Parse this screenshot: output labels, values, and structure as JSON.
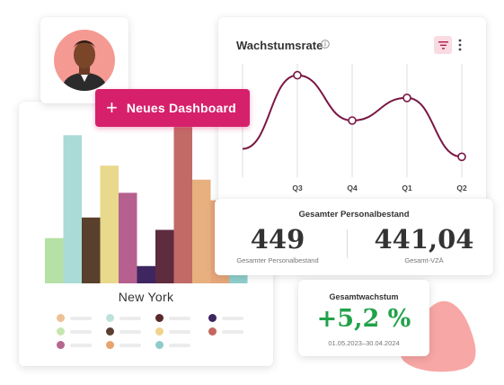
{
  "avatar": {
    "alt": "user-avatar"
  },
  "new_dashboard_button": {
    "icon": "+",
    "label": "Neues Dashboard"
  },
  "bar_card": {
    "city": "New York",
    "legend_colors": [
      "#ecc196",
      "#bde2dc",
      "#5a2a2d",
      "#3e2660",
      "#c8e6b1",
      "#5b3f33",
      "#f0d38c",
      "#c3675f",
      "#b6668e",
      "#e9a36d",
      "#8fccc9"
    ]
  },
  "line_card": {
    "title": "Wachstumsrate",
    "icons": [
      "info-icon",
      "filter-icon",
      "kebab-menu-icon"
    ]
  },
  "personnel": {
    "title": "Gesamter Personalbestand",
    "left": {
      "value": "449",
      "label": "Gesamter Personalbestand"
    },
    "right": {
      "value": "441,04",
      "label": "Gesamt-VZÄ"
    }
  },
  "growth": {
    "title": "Gesamtwachstum",
    "value": "+5,2 %",
    "range": "01.05.2023–30.04.2024",
    "color": "#21a24a"
  },
  "chart_data": [
    {
      "type": "bar",
      "title": "",
      "categories": [
        "",
        "",
        "",
        "",
        "",
        "",
        "",
        "",
        "",
        "",
        ""
      ],
      "colors": [
        "#b6e0a6",
        "#aadbd6",
        "#59402d",
        "#e8d98c",
        "#b6608f",
        "#3e2660",
        "#5e2b3f",
        "#c26b66",
        "#e7b07f",
        "#e8a77a",
        "#8fcfcc"
      ],
      "values": [
        55,
        180,
        80,
        143,
        110,
        21,
        65,
        190,
        126,
        101,
        22
      ],
      "ylim": [
        0,
        200
      ]
    },
    {
      "type": "line",
      "title": "Wachstumsrate",
      "x": [
        "Q3",
        "Q4",
        "Q1",
        "Q2"
      ],
      "series": [
        {
          "values": [
            0.9,
            0.5,
            0.7,
            0.18
          ]
        }
      ],
      "color": "#7a1745"
    }
  ]
}
